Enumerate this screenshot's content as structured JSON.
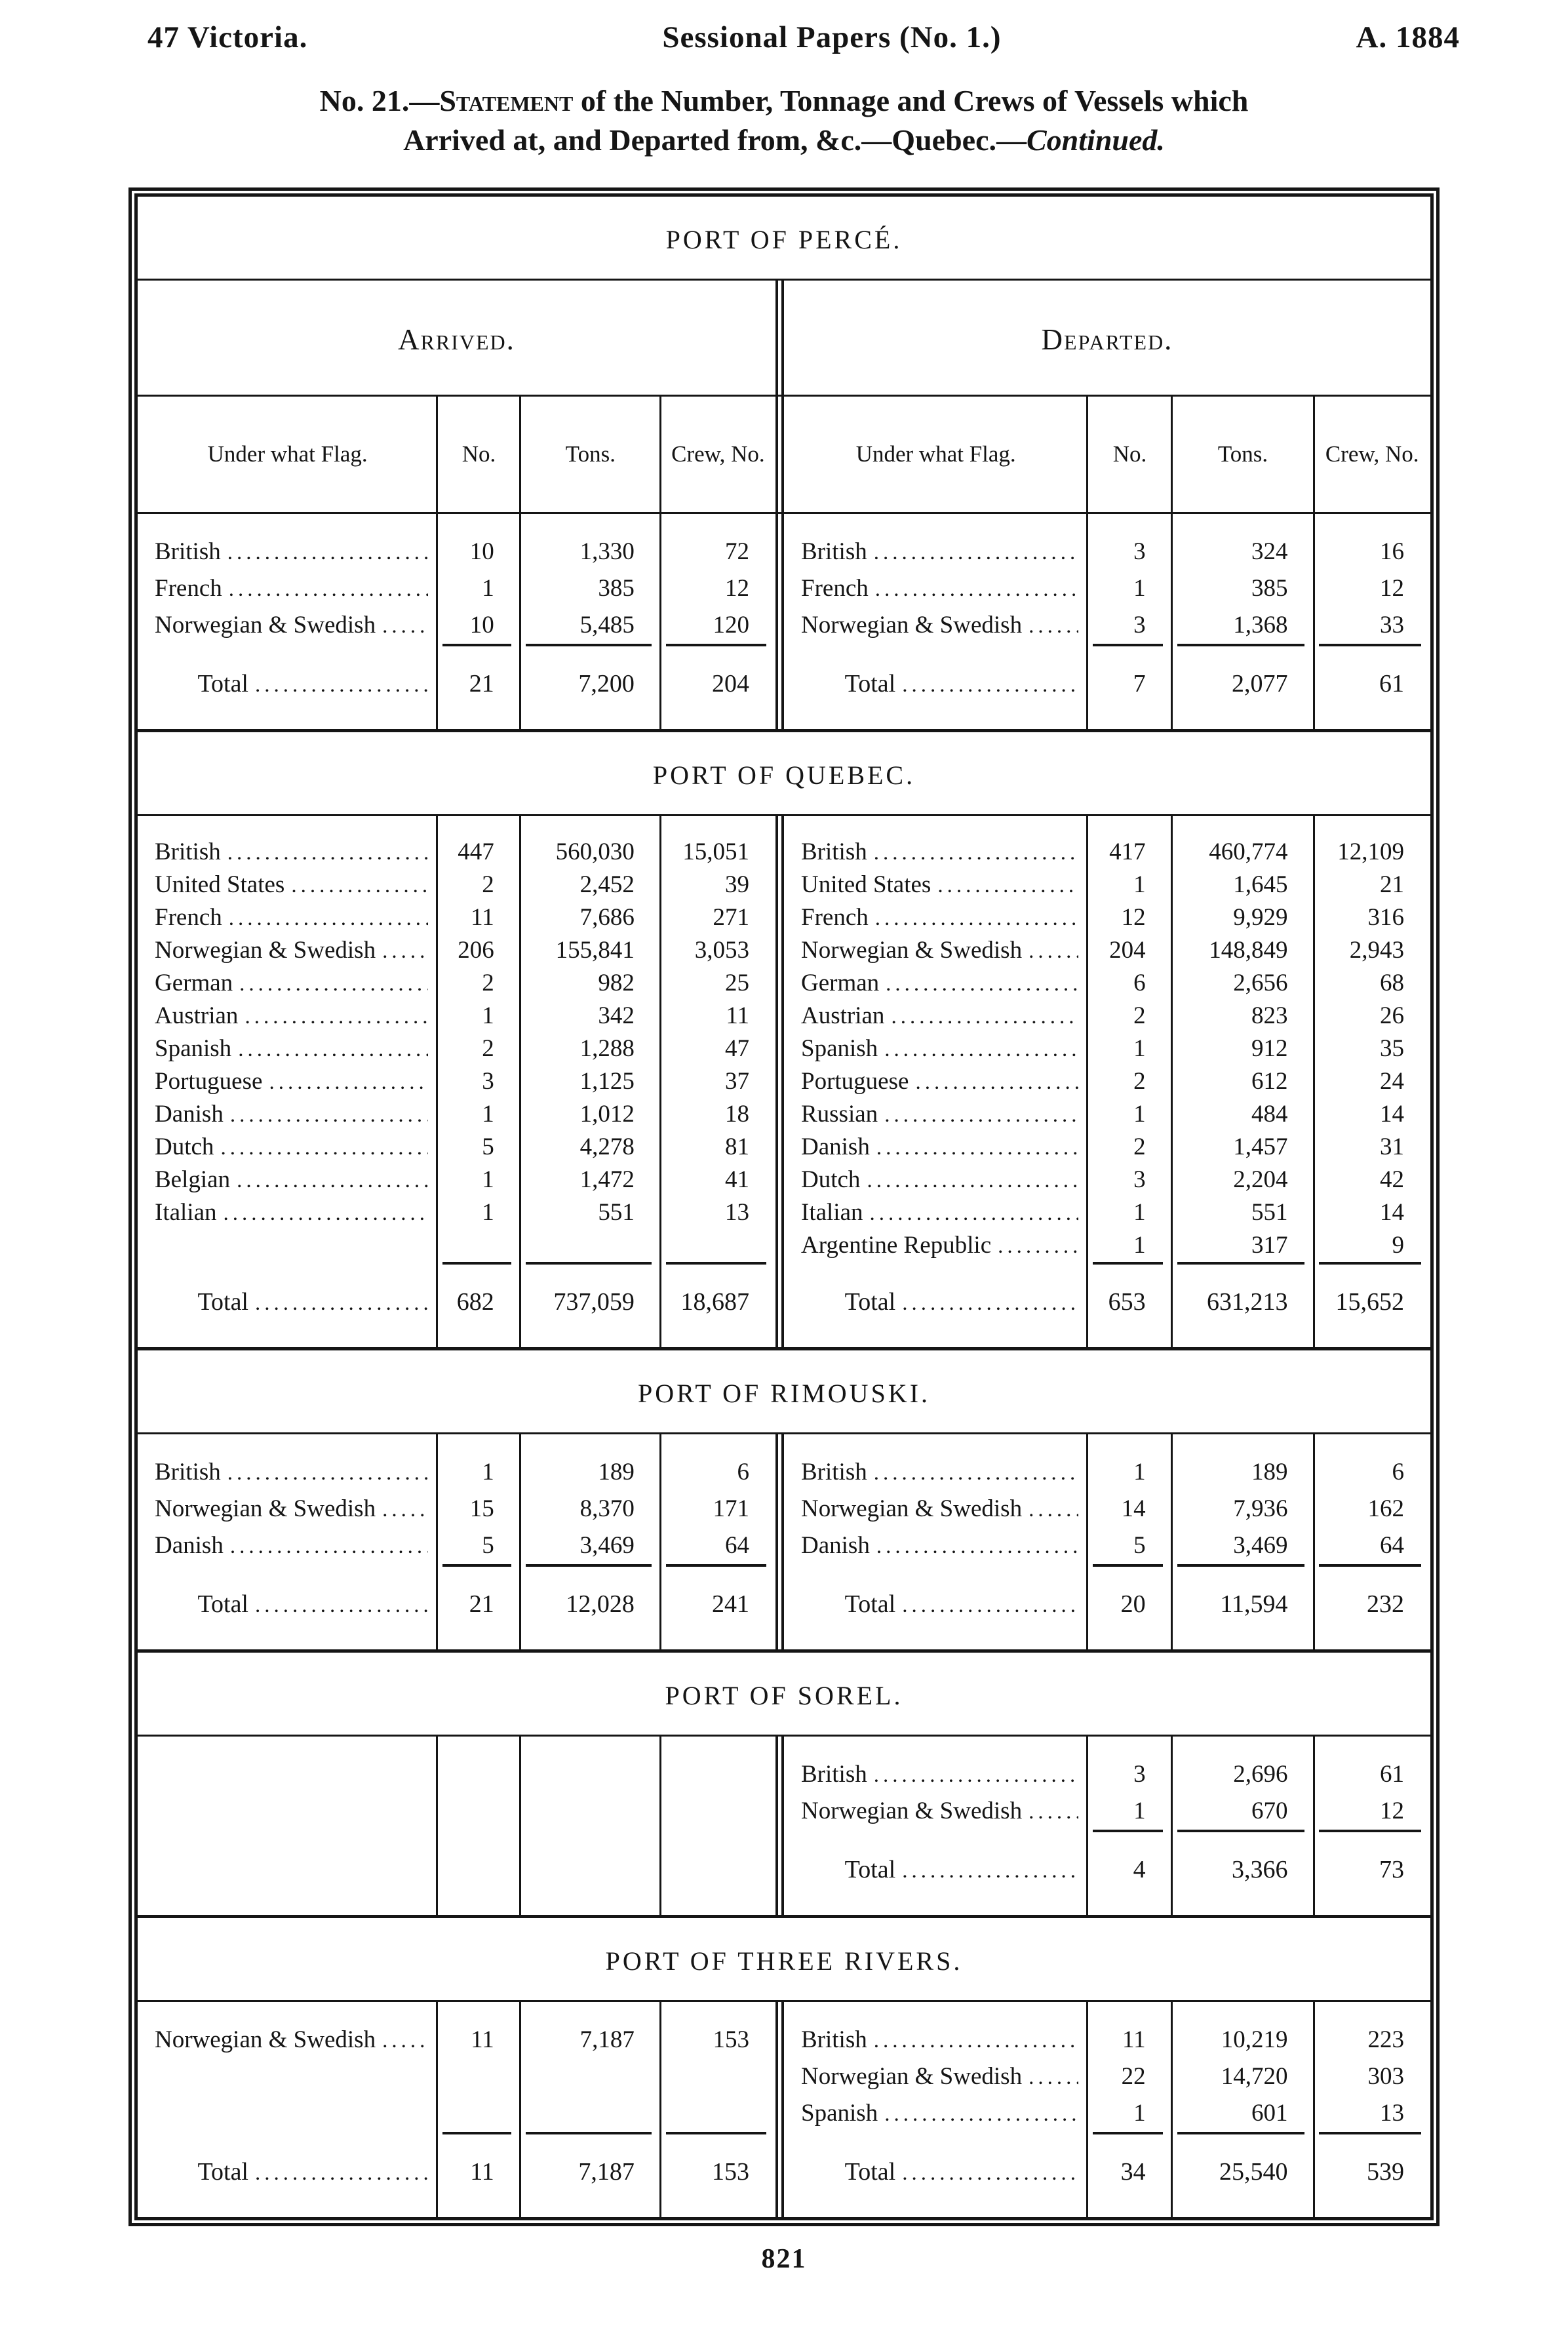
{
  "page": {
    "header_left": "47 Victoria.",
    "header_center": "Sessional Papers (No. 1.)",
    "header_right": "A. 1884",
    "title_no": "No. 21.—",
    "title_statement": "Statement",
    "title_rest": " of the Number, Tonnage and Crews of Vessels which",
    "title_line2_prefix": "Arrived at, and Departed from, &c.—Quebec.—",
    "title_line2_italic": "Continued.",
    "footer_page_number": "821"
  },
  "table": {
    "arrived_label": "Arrived.",
    "departed_label": "Departed.",
    "columns": [
      "Under what Flag.",
      "No.",
      "Tons.",
      "Crew, No."
    ],
    "total_label": "Total",
    "sections": [
      {
        "title": "PORT OF PERCÉ.",
        "show_headers": true,
        "arrived": {
          "rows": [
            [
              "British",
              "10",
              "1,330",
              "72"
            ],
            [
              "French",
              "1",
              "385",
              "12"
            ],
            [
              "Norwegian & Swedish",
              "10",
              "5,485",
              "120"
            ]
          ],
          "total": [
            "21",
            "7,200",
            "204"
          ]
        },
        "departed": {
          "rows": [
            [
              "British",
              "3",
              "324",
              "16"
            ],
            [
              "French",
              "1",
              "385",
              "12"
            ],
            [
              "Norwegian & Swedish",
              "3",
              "1,368",
              "33"
            ]
          ],
          "total": [
            "7",
            "2,077",
            "61"
          ]
        }
      },
      {
        "title": "PORT OF QUEBEC.",
        "show_headers": false,
        "arrived": {
          "rows": [
            [
              "British",
              "447",
              "560,030",
              "15,051"
            ],
            [
              "United States",
              "2",
              "2,452",
              "39"
            ],
            [
              "French",
              "11",
              "7,686",
              "271"
            ],
            [
              "Norwegian & Swedish",
              "206",
              "155,841",
              "3,053"
            ],
            [
              "German",
              "2",
              "982",
              "25"
            ],
            [
              "Austrian",
              "1",
              "342",
              "11"
            ],
            [
              "Spanish",
              "2",
              "1,288",
              "47"
            ],
            [
              "Portuguese",
              "3",
              "1,125",
              "37"
            ],
            [
              "Danish",
              "1",
              "1,012",
              "18"
            ],
            [
              "Dutch",
              "5",
              "4,278",
              "81"
            ],
            [
              "Belgian",
              "1",
              "1,472",
              "41"
            ],
            [
              "Italian",
              "1",
              "551",
              "13"
            ]
          ],
          "total": [
            "682",
            "737,059",
            "18,687"
          ]
        },
        "departed": {
          "rows": [
            [
              "British",
              "417",
              "460,774",
              "12,109"
            ],
            [
              "United States",
              "1",
              "1,645",
              "21"
            ],
            [
              "French",
              "12",
              "9,929",
              "316"
            ],
            [
              "Norwegian & Swedish",
              "204",
              "148,849",
              "2,943"
            ],
            [
              "German",
              "6",
              "2,656",
              "68"
            ],
            [
              "Austrian",
              "2",
              "823",
              "26"
            ],
            [
              "Spanish",
              "1",
              "912",
              "35"
            ],
            [
              "Portuguese",
              "2",
              "612",
              "24"
            ],
            [
              "Russian",
              "1",
              "484",
              "14"
            ],
            [
              "Danish",
              "2",
              "1,457",
              "31"
            ],
            [
              "Dutch",
              "3",
              "2,204",
              "42"
            ],
            [
              "Italian",
              "1",
              "551",
              "14"
            ],
            [
              "Argentine Republic",
              "1",
              "317",
              "9"
            ]
          ],
          "total": [
            "653",
            "631,213",
            "15,652"
          ]
        }
      },
      {
        "title": "PORT OF RIMOUSKI.",
        "show_headers": false,
        "arrived": {
          "rows": [
            [
              "British",
              "1",
              "189",
              "6"
            ],
            [
              "Norwegian & Swedish",
              "15",
              "8,370",
              "171"
            ],
            [
              "Danish",
              "5",
              "3,469",
              "64"
            ]
          ],
          "total": [
            "21",
            "12,028",
            "241"
          ]
        },
        "departed": {
          "rows": [
            [
              "British",
              "1",
              "189",
              "6"
            ],
            [
              "Norwegian & Swedish",
              "14",
              "7,936",
              "162"
            ],
            [
              "Danish",
              "5",
              "3,469",
              "64"
            ]
          ],
          "total": [
            "20",
            "11,594",
            "232"
          ]
        }
      },
      {
        "title": "PORT OF SOREL.",
        "show_headers": false,
        "arrived": {
          "rows": [],
          "total": null
        },
        "departed": {
          "rows": [
            [
              "British",
              "3",
              "2,696",
              "61"
            ],
            [
              "Norwegian & Swedish",
              "1",
              "670",
              "12"
            ]
          ],
          "total": [
            "4",
            "3,366",
            "73"
          ]
        }
      },
      {
        "title": "PORT OF THREE RIVERS.",
        "show_headers": false,
        "arrived": {
          "rows": [
            [
              "Norwegian & Swedish",
              "11",
              "7,187",
              "153"
            ]
          ],
          "total": [
            "11",
            "7,187",
            "153"
          ]
        },
        "departed": {
          "rows": [
            [
              "British",
              "11",
              "10,219",
              "223"
            ],
            [
              "Norwegian & Swedish",
              "22",
              "14,720",
              "303"
            ],
            [
              "Spanish",
              "1",
              "601",
              "13"
            ]
          ],
          "total": [
            "34",
            "25,540",
            "539"
          ]
        }
      }
    ]
  }
}
